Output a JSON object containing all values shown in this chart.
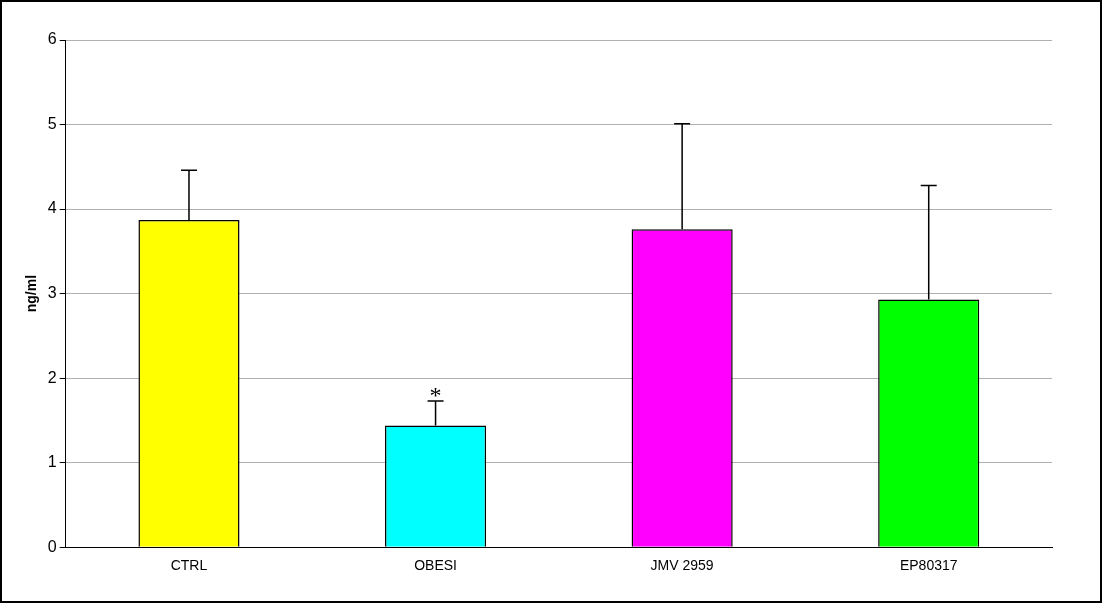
{
  "chart_data": {
    "type": "bar",
    "ylabel": "ng/ml",
    "categories": [
      "CTRL",
      "OBESI",
      "JMV 2959",
      "EP80317"
    ],
    "values": [
      3.87,
      1.44,
      3.76,
      2.93
    ],
    "colors": [
      "#ffff00",
      "#00ffff",
      "#ff00ff",
      "#00ff00"
    ],
    "errors": [
      [
        3.87,
        4.46
      ],
      [
        1.44,
        1.73
      ],
      [
        3.76,
        5.01
      ],
      [
        2.93,
        4.28
      ]
    ],
    "ylim": [
      0,
      6
    ],
    "yticks": [
      0,
      1,
      2,
      3,
      4,
      5,
      6
    ],
    "grid": "y",
    "legend": false,
    "annotations": [
      {
        "text": "*",
        "x": "OBESI",
        "y": 1.73
      }
    ]
  }
}
